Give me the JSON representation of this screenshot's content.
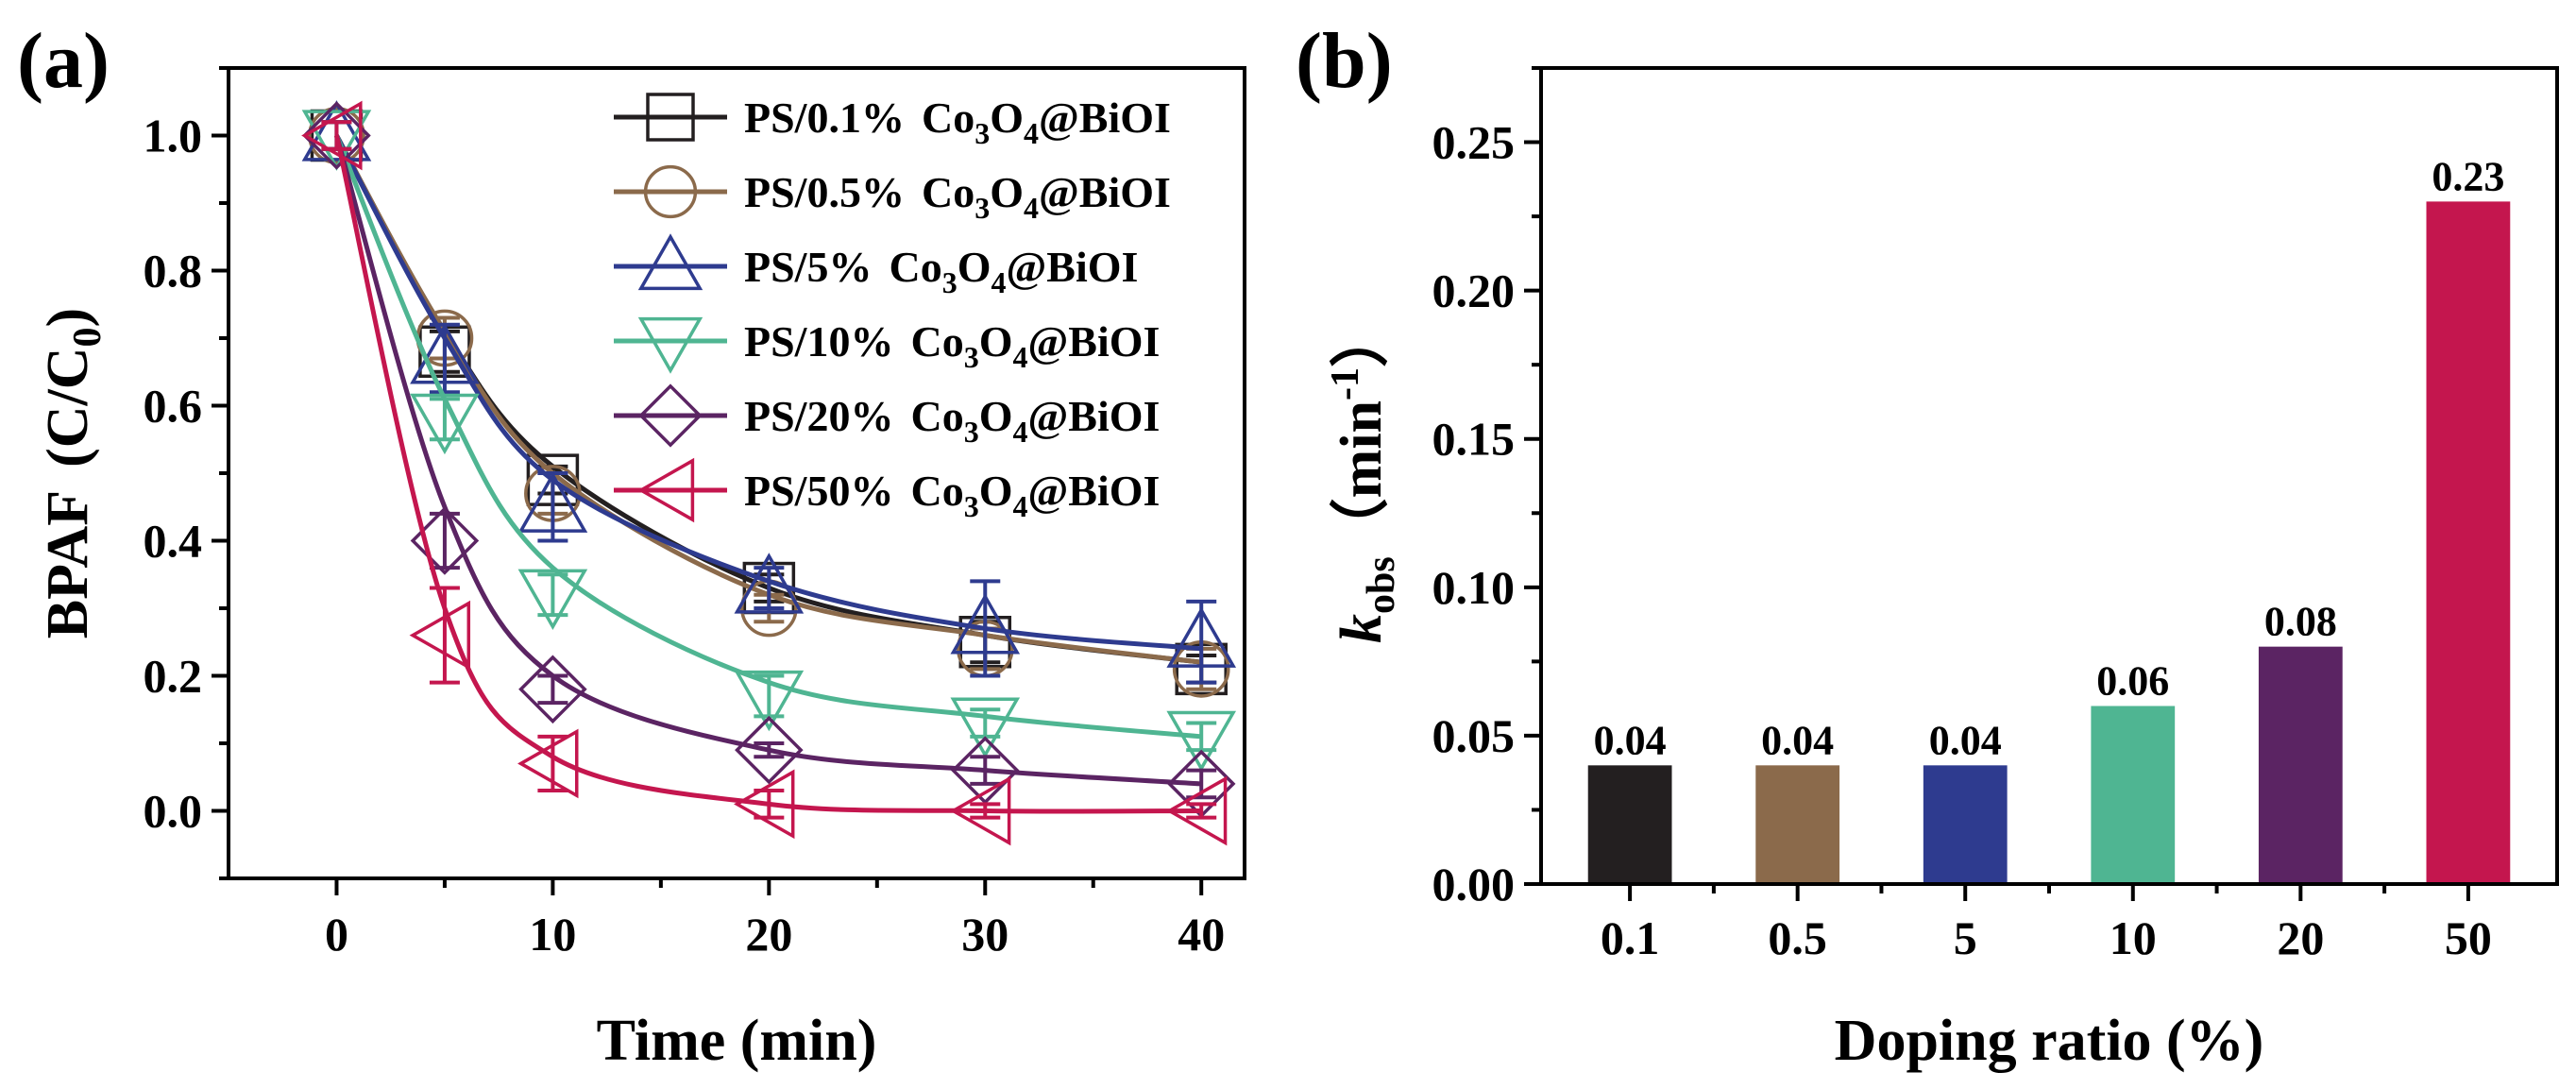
{
  "chart_data": [
    {
      "panel": "(a)",
      "type": "line",
      "xlabel": "Time (min)",
      "ylabel": {
        "main": "BPAF",
        "expr": "C/C",
        "sub": "0"
      },
      "xlim": [
        -5,
        42
      ],
      "ylim": [
        -0.1,
        1.1
      ],
      "xticks": [
        "0",
        "10",
        "20",
        "30",
        "40"
      ],
      "yticks": [
        "0.0",
        "0.2",
        "0.4",
        "0.6",
        "0.8",
        "1.0"
      ],
      "x": [
        0,
        5,
        10,
        20,
        30,
        40
      ],
      "series": [
        {
          "name": "PS/0.1% Co3O4@BiOI",
          "label_pre": "PS/0.1%",
          "color": "#231f20",
          "marker": "square",
          "values": [
            1.0,
            0.68,
            0.49,
            0.33,
            0.25,
            0.21
          ],
          "err": [
            0.02,
            0.03,
            0.02,
            0.02,
            0.03,
            0.02
          ],
          "fit": [
            1.0,
            0.71,
            0.51,
            0.33,
            0.26,
            0.22
          ]
        },
        {
          "name": "PS/0.5% Co3O4@BiOI",
          "label_pre": "PS/0.5%",
          "color": "#8b6a4b",
          "marker": "circle",
          "values": [
            1.0,
            0.7,
            0.47,
            0.3,
            0.24,
            0.21
          ],
          "err": [
            0.02,
            0.03,
            0.03,
            0.02,
            0.03,
            0.03
          ],
          "fit": [
            1.0,
            0.71,
            0.5,
            0.32,
            0.26,
            0.22
          ]
        },
        {
          "name": "PS/5% Co3O4@BiOI",
          "label_pre": "PS/5%",
          "color": "#2e3b8f",
          "marker": "triangle-up",
          "values": [
            1.0,
            0.67,
            0.45,
            0.33,
            0.27,
            0.25
          ],
          "err": [
            0.02,
            0.05,
            0.05,
            0.03,
            0.07,
            0.06
          ],
          "fit": [
            1.0,
            0.7,
            0.49,
            0.34,
            0.27,
            0.24
          ]
        },
        {
          "name": "PS/10% Co3O4@BiOI",
          "label_pre": "PS/10%",
          "color": "#4fb592",
          "marker": "triangle-down",
          "values": [
            1.0,
            0.58,
            0.32,
            0.17,
            0.13,
            0.11
          ],
          "err": [
            0.02,
            0.03,
            0.03,
            0.03,
            0.02,
            0.02
          ],
          "fit": [
            1.0,
            0.61,
            0.36,
            0.19,
            0.14,
            0.11
          ]
        },
        {
          "name": "PS/20% Co3O4@BiOI",
          "label_pre": "PS/20%",
          "color": "#5b2463",
          "marker": "diamond",
          "values": [
            1.0,
            0.4,
            0.18,
            0.09,
            0.06,
            0.04
          ],
          "err": [
            0.02,
            0.04,
            0.02,
            0.01,
            0.02,
            0.02
          ],
          "fit": [
            1.0,
            0.45,
            0.2,
            0.09,
            0.06,
            0.04
          ]
        },
        {
          "name": "PS/50% Co3O4@BiOI",
          "label_pre": "PS/50%",
          "color": "#c4164e",
          "marker": "triangle-left",
          "values": [
            1.0,
            0.26,
            0.07,
            0.01,
            0.0,
            0.0
          ],
          "err": [
            0.02,
            0.07,
            0.04,
            0.02,
            0.01,
            0.01
          ],
          "fit": [
            1.0,
            0.3,
            0.08,
            0.01,
            0.0,
            0.0
          ]
        }
      ]
    },
    {
      "panel": "(b)",
      "type": "bar",
      "xlabel": "Doping ratio (%)",
      "ylabel": {
        "k": "k",
        "sub": "obs",
        "unit": "（min",
        "exp": "-1",
        "close": "）"
      },
      "ylim": [
        0,
        0.275
      ],
      "yticks": [
        "0.00",
        "0.05",
        "0.10",
        "0.15",
        "0.20",
        "0.25"
      ],
      "categories": [
        "0.1",
        "0.5",
        "5",
        "10",
        "20",
        "50"
      ],
      "values": [
        0.04,
        0.04,
        0.04,
        0.06,
        0.08,
        0.23
      ],
      "labels": [
        "0.04",
        "0.04",
        "0.04",
        "0.06",
        "0.08",
        "0.23"
      ],
      "colors": [
        "#231f20",
        "#8b6a4b",
        "#2e3b8f",
        "#4fb592",
        "#5b2463",
        "#c4164e"
      ]
    }
  ],
  "legend": {
    "co": "Co",
    "three": "3",
    "o": "O",
    "four": "4",
    "tail": "@BiOI"
  }
}
